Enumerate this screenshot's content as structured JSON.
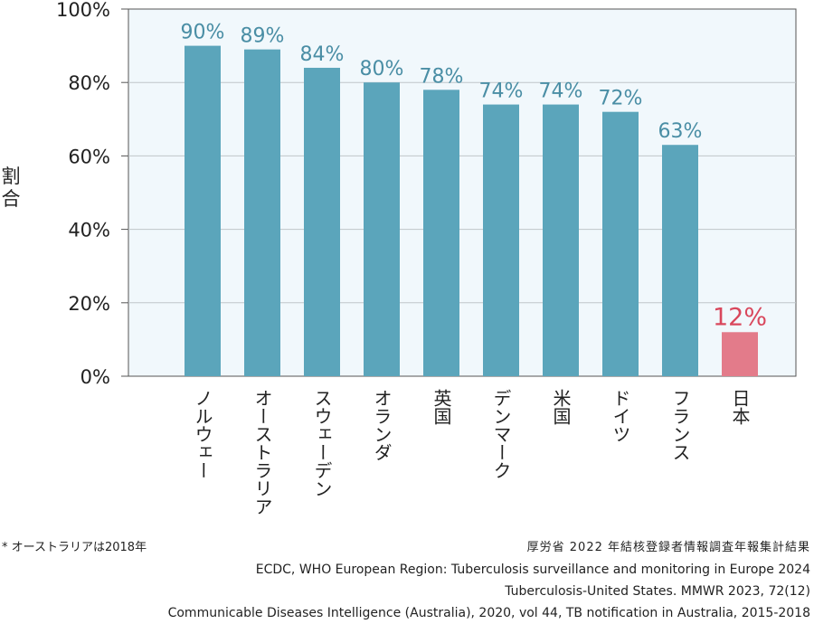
{
  "chart_data": {
    "type": "bar",
    "ylabel": "割合",
    "ylim": [
      0,
      100
    ],
    "y_ticks": [
      "0%",
      "20%",
      "40%",
      "60%",
      "80%",
      "100%"
    ],
    "y_tick_values": [
      0,
      20,
      40,
      60,
      80,
      100
    ],
    "grid": true,
    "categories": [
      "ノルウェー",
      "オーストラリア",
      "スウェーデン",
      "オランダ",
      "英国",
      "デンマーク",
      "米国",
      "ドイツ",
      "フランス",
      "日本"
    ],
    "values": [
      90,
      89,
      84,
      80,
      78,
      74,
      74,
      72,
      63,
      12
    ],
    "value_labels": [
      "90%",
      "89%",
      "84%",
      "80%",
      "78%",
      "74%",
      "74%",
      "72%",
      "63%",
      "12%"
    ],
    "highlight_index": 9,
    "colors": {
      "bar": "#5ba5bb",
      "bar_label": "#4a8ea5",
      "highlight_bar": "#e37b8a",
      "highlight_label": "#d9475c",
      "plot_bg": "#f1f8fc",
      "grid": "#bfc6c9",
      "axis": "#555555"
    }
  },
  "footnote": "* オーストラリアは2018年",
  "sources": [
    "厚労省 2022 年結核登録者情報調査年報集計結果",
    "ECDC, WHO European Region: Tuberculosis surveillance and monitoring in Europe 2024",
    "Tuberculosis-United States. MMWR 2023, 72(12)",
    "Communicable Diseases Intelligence (Australia), 2020, vol 44, TB notification in Australia, 2015-2018"
  ]
}
